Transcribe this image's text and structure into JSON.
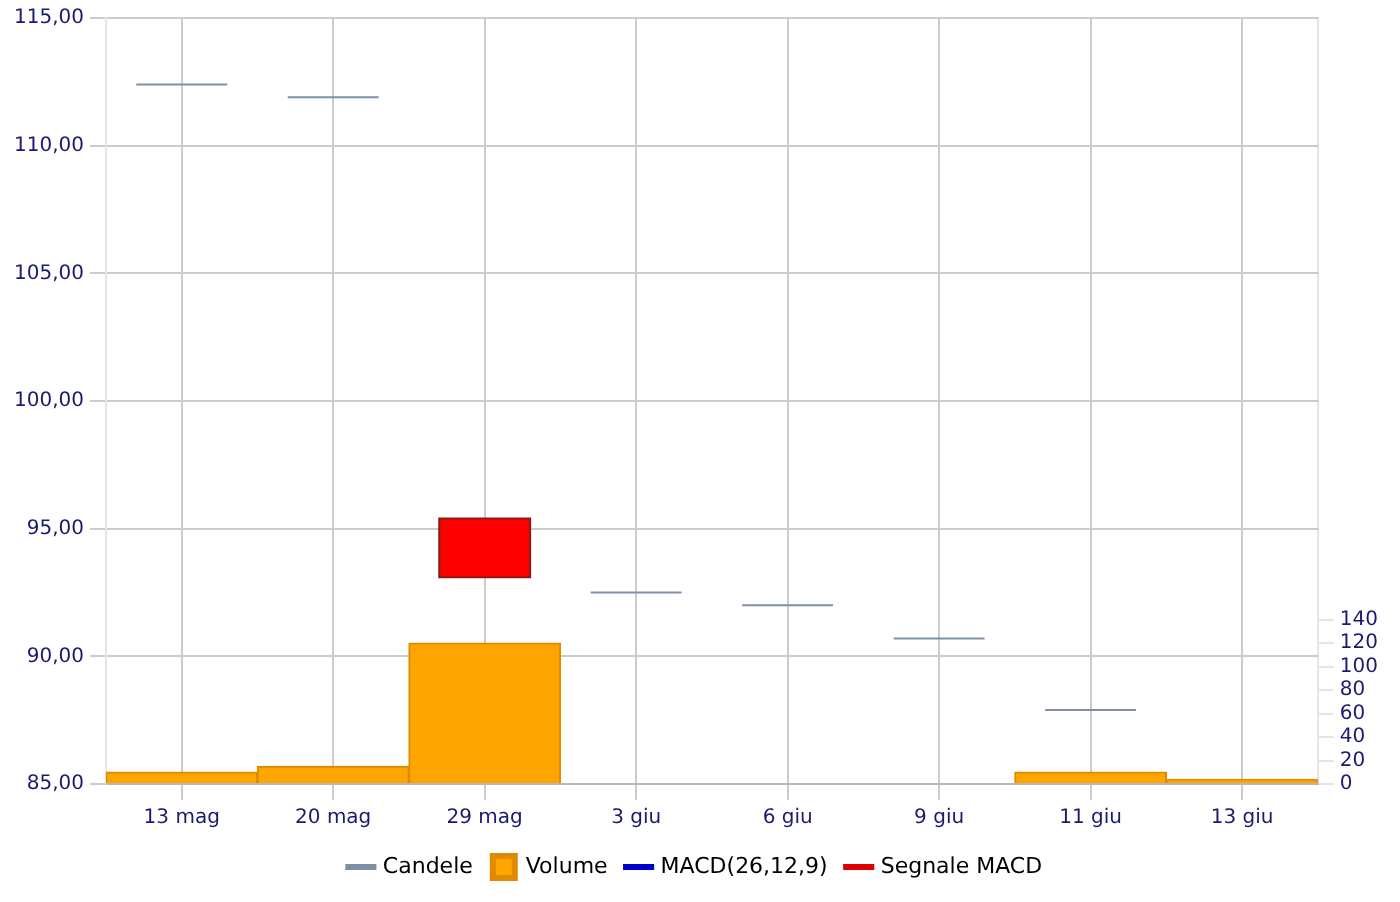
{
  "chart_data": {
    "type": "candlestick",
    "categories": [
      "13 mag",
      "20 mag",
      "29 mag",
      "3 giu",
      "6 giu",
      "9 giu",
      "11 giu",
      "13 giu"
    ],
    "series": [
      {
        "name": "Candele",
        "type": "candlestick",
        "color": "#7f8fa6",
        "colors": [
          "#7f8fa6",
          "#7f8fa6",
          "#ff0000",
          "#7f8fa6",
          "#7f8fa6",
          "#7f8fa6",
          "#7f8fa6",
          null
        ],
        "ohlc": [
          [
            112.4,
            112.4,
            112.4,
            112.4
          ],
          [
            111.9,
            111.9,
            111.9,
            111.9
          ],
          [
            95.4,
            95.4,
            93.1,
            93.1
          ],
          [
            92.5,
            92.5,
            92.5,
            92.5
          ],
          [
            92.0,
            92.0,
            92.0,
            92.0
          ],
          [
            90.7,
            90.7,
            90.7,
            90.7
          ],
          [
            87.9,
            87.9,
            87.9,
            87.9
          ],
          null
        ]
      },
      {
        "name": "Volume",
        "type": "bar",
        "axis": "y2",
        "color": "#ffa500",
        "values": [
          10,
          15,
          120,
          null,
          null,
          null,
          10,
          4
        ]
      },
      {
        "name": "MACD(26,12,9)",
        "type": "line",
        "color": "#0000cc",
        "values": [
          null,
          null,
          null,
          null,
          null,
          null,
          null,
          null
        ]
      },
      {
        "name": "Segnale MACD",
        "type": "line",
        "color": "#dd0000",
        "values": [
          null,
          null,
          null,
          null,
          null,
          null,
          null,
          null
        ]
      }
    ],
    "ylim": [
      85,
      115
    ],
    "yticks": [
      {
        "value": 85,
        "label": "85,00"
      },
      {
        "value": 90,
        "label": "90,00"
      },
      {
        "value": 95,
        "label": "95,00"
      },
      {
        "value": 100,
        "label": "100,00"
      },
      {
        "value": 105,
        "label": "105,00"
      },
      {
        "value": 110,
        "label": "110,00"
      },
      {
        "value": 115,
        "label": "115,00"
      }
    ],
    "y2lim": [
      0,
      653
    ],
    "y2ticks": [
      0,
      20,
      40,
      60,
      80,
      100,
      120,
      140
    ],
    "grid": true,
    "legend": "bottom"
  }
}
